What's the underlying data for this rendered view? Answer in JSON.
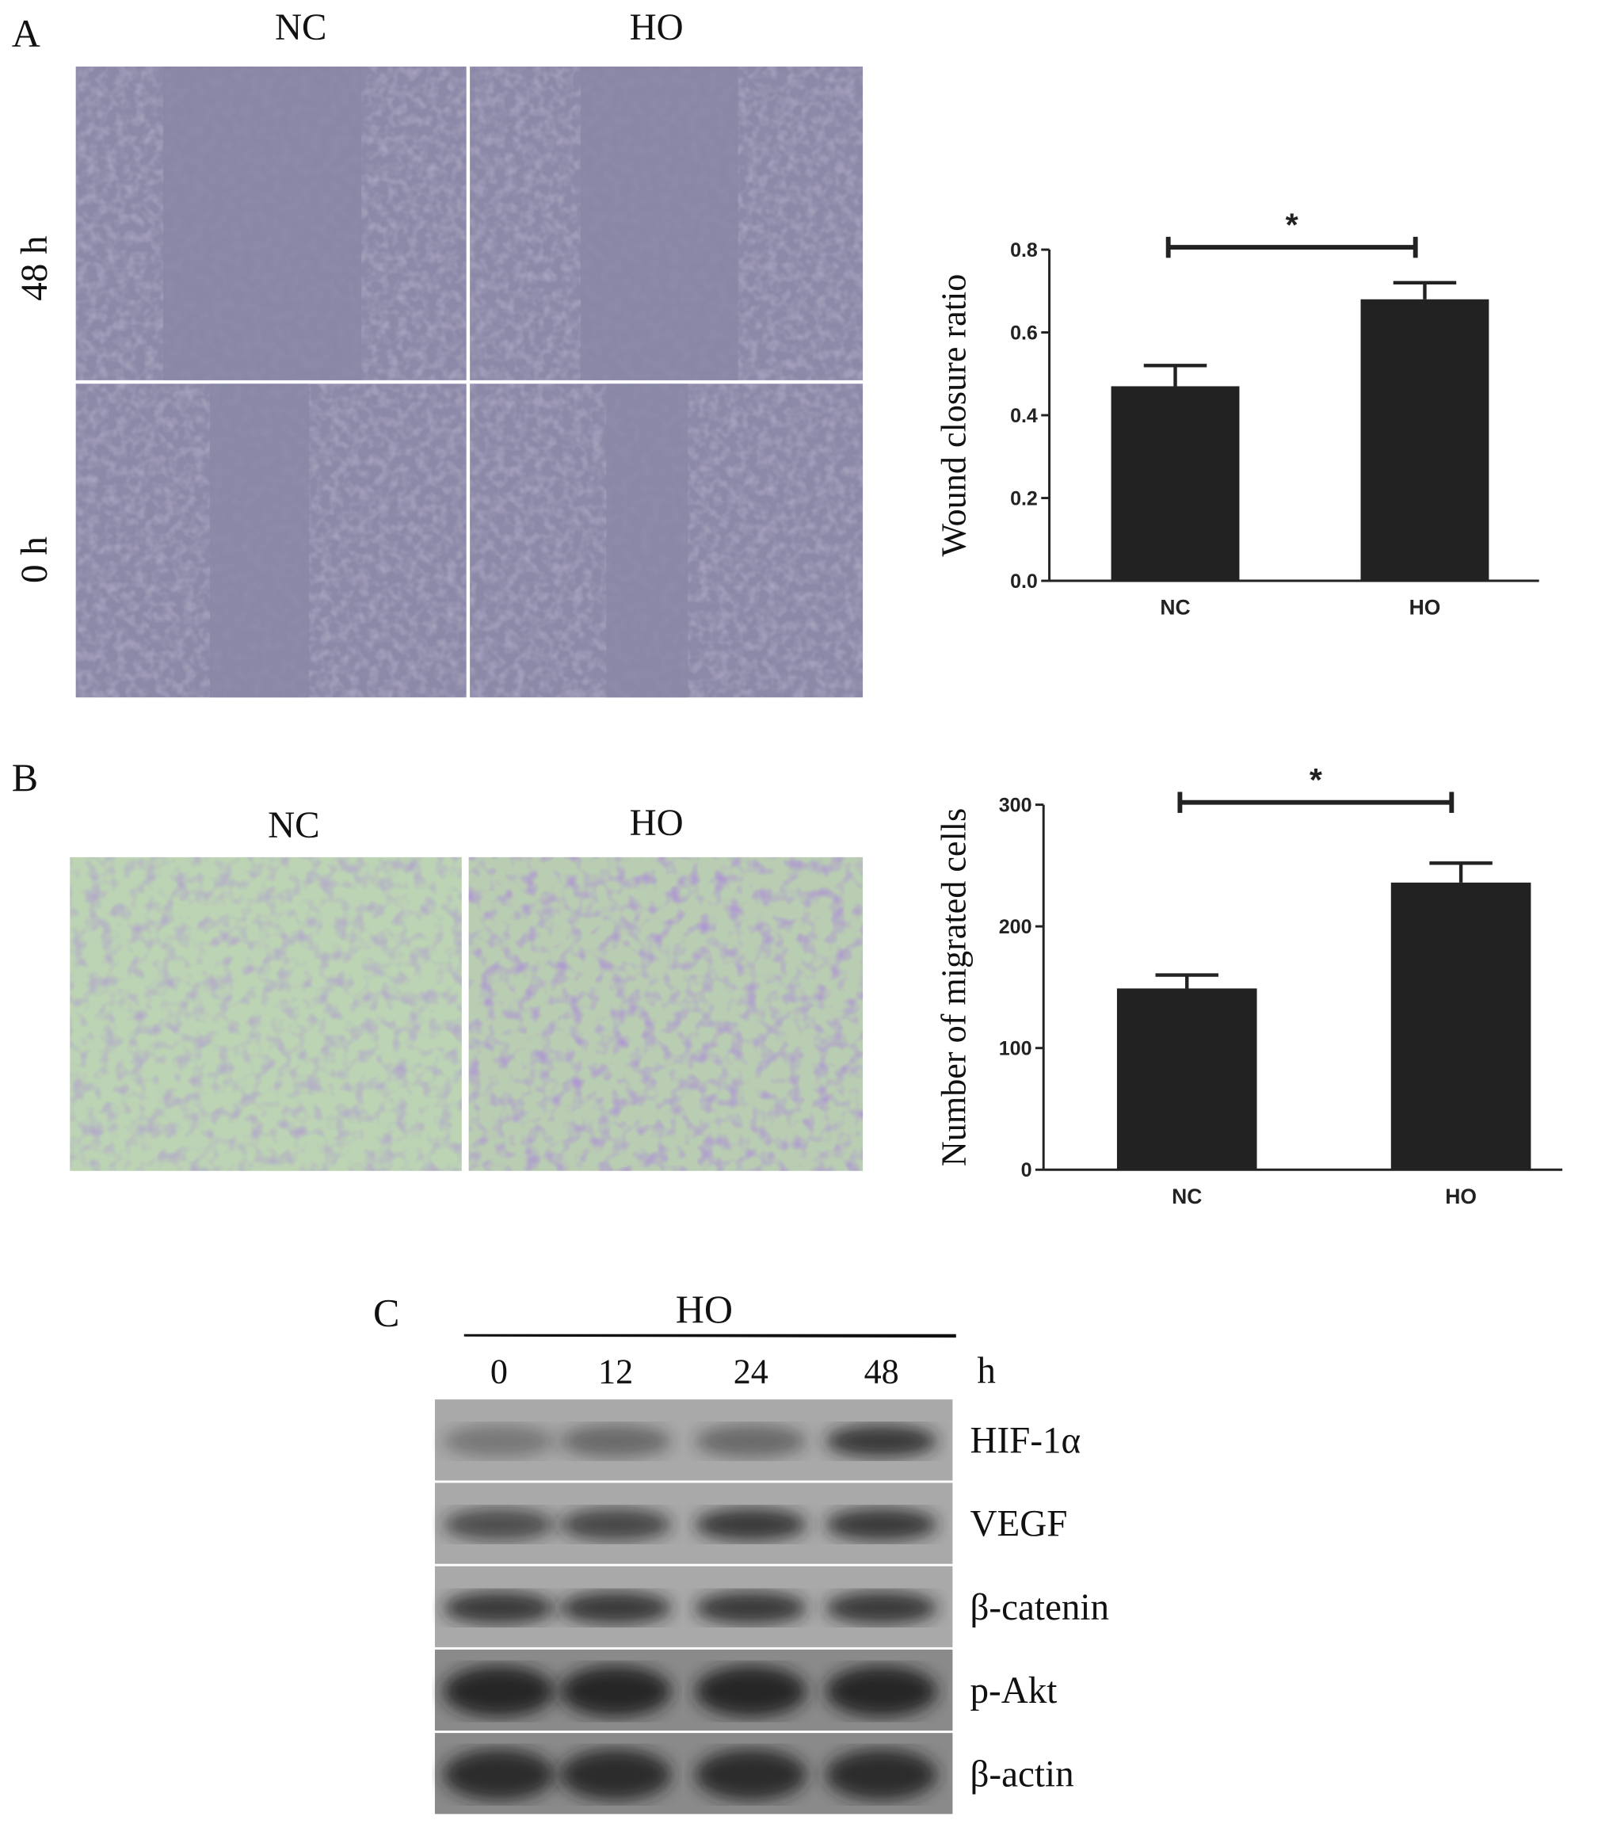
{
  "panels": {
    "a": {
      "label": "A",
      "columns": [
        "NC",
        "HO"
      ],
      "rows": [
        "48 h",
        "0 h"
      ]
    },
    "b": {
      "label": "B",
      "columns": [
        "NC",
        "HO"
      ]
    },
    "c": {
      "label": "C",
      "treatment": "HO",
      "timepoints": [
        "0",
        "12",
        "24",
        "48"
      ],
      "time_unit": "h",
      "proteins": [
        "HIF-1α",
        "VEGF",
        "β-catenin",
        "p-Akt",
        "β-actin"
      ]
    }
  },
  "chart_data": [
    {
      "type": "bar",
      "ylabel": "Wound closure ratio",
      "categories": [
        "NC",
        "HO"
      ],
      "values": [
        0.47,
        0.68
      ],
      "errors": [
        0.05,
        0.04
      ],
      "color": "#222222",
      "ylim": [
        0,
        0.8
      ],
      "yticks": [
        {
          "value": 0,
          "label": "0.0"
        },
        0.2,
        0.4,
        0.6,
        0.8
      ],
      "annotation": "*"
    },
    {
      "type": "bar",
      "ylabel": "Number of migrated cells",
      "categories": [
        "NC",
        "HO"
      ],
      "values": [
        149,
        236
      ],
      "errors": [
        11,
        16
      ],
      "color": "#222222",
      "ylim": [
        0,
        300
      ],
      "yticks": [
        0,
        100,
        200,
        300
      ],
      "annotation": "*"
    }
  ]
}
